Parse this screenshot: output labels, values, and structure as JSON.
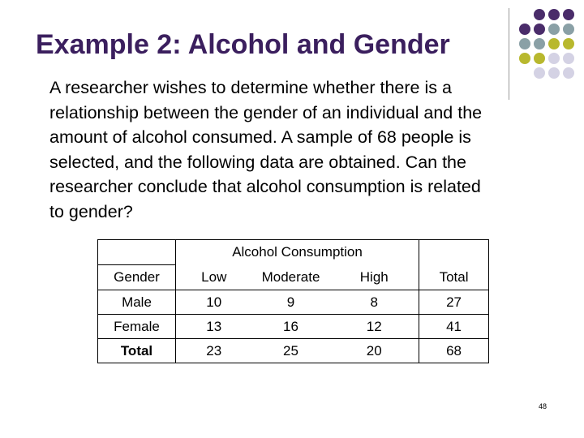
{
  "slide": {
    "title": "Example 2: Alcohol and Gender",
    "body_lines": [
      "A researcher wishes to determine whether there is a",
      "relationship between the gender of an individual and the",
      "amount of alcohol consumed. A sample of 68 people is",
      "selected, and the following data are obtained. Can the",
      "researcher conclude that alcohol consumption is related",
      "to gender?"
    ],
    "page_number": "48"
  },
  "table": {
    "group_header": "Alcohol Consumption",
    "columns": [
      "Gender",
      "Low",
      "Moderate",
      "High",
      "Total"
    ],
    "rows": [
      [
        "Male",
        "10",
        "9",
        "8",
        "27"
      ],
      [
        "Female",
        "13",
        "16",
        "12",
        "41"
      ],
      [
        "Total",
        "23",
        "25",
        "20",
        "68"
      ]
    ]
  },
  "colors": {
    "title": "#3b1f5e",
    "dot_purple": "#4a2c6a",
    "dot_slate": "#8aa0a6",
    "dot_olive": "#b8b82e",
    "dot_lavender": "#d4d2e4"
  }
}
